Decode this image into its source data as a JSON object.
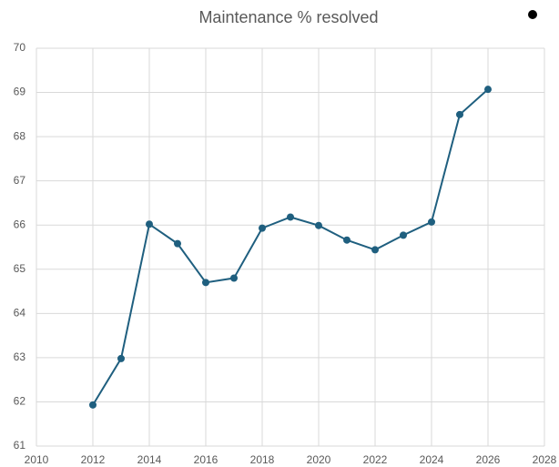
{
  "chart_data": {
    "type": "line",
    "title": "Maintenance % resolved",
    "x": [
      2012,
      2013,
      2014,
      2015,
      2016,
      2017,
      2018,
      2019,
      2020,
      2021,
      2022,
      2023,
      2024,
      2025,
      2026
    ],
    "series": [
      {
        "color": "#1f5f7f",
        "values": [
          61.93,
          62.98,
          66.02,
          65.58,
          64.7,
          64.8,
          65.93,
          66.18,
          65.99,
          65.66,
          65.44,
          65.77,
          66.07,
          68.5,
          69.07
        ]
      }
    ],
    "xlim": [
      2010,
      2028
    ],
    "xticks": [
      2010,
      2012,
      2014,
      2016,
      2018,
      2020,
      2022,
      2024,
      2026,
      2028
    ],
    "ylim": [
      61,
      70
    ],
    "yticks": [
      61,
      62,
      63,
      64,
      65,
      66,
      67,
      68,
      69,
      70
    ],
    "grid": true
  }
}
